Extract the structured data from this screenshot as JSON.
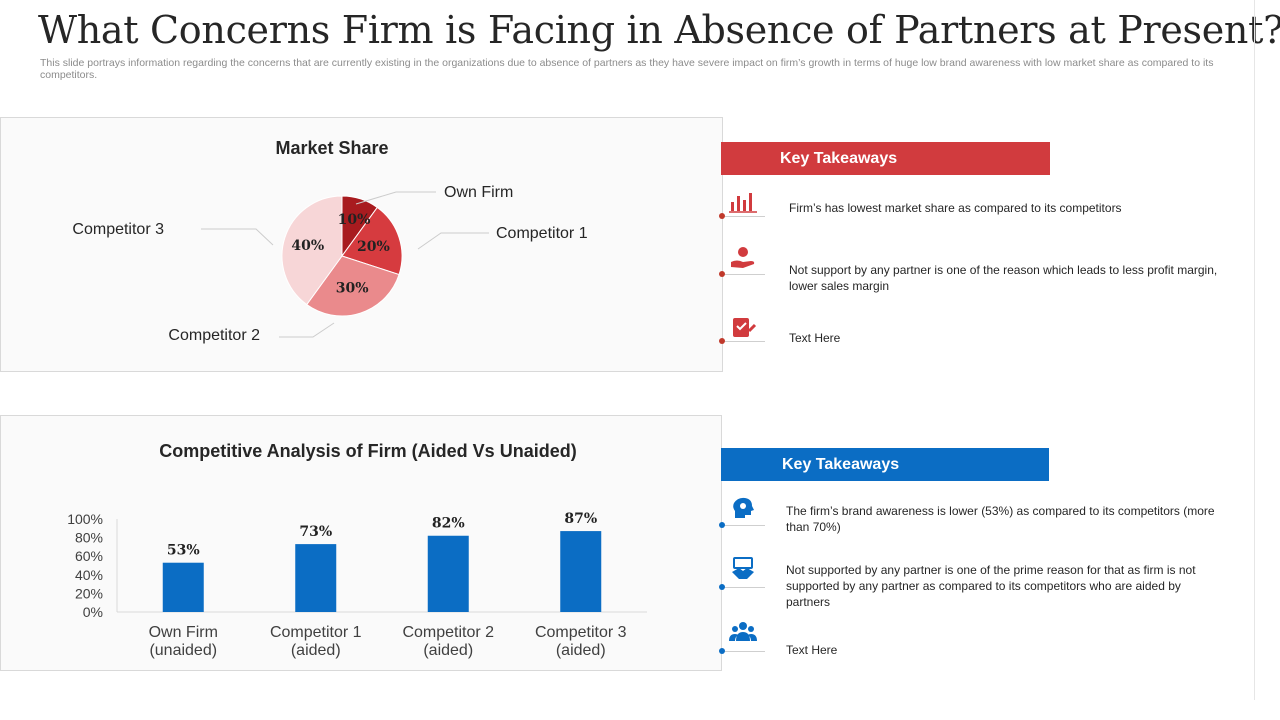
{
  "slide": {
    "title": "What Concerns Firm is Facing in Absence of Partners at Present?",
    "subtitle": "This slide portrays information regarding the concerns that are currently existing in the organizations due to absence of partners as they have severe impact on firm’s growth in terms of huge low brand awareness with low market share as compared to its competitors."
  },
  "colors": {
    "red_accent": "#d13b3e",
    "blue_accent": "#0b6dc4",
    "pie_own_firm": "#a81b1f",
    "pie_competitor1": "#d63b3f",
    "pie_competitor2": "#ea8a8c",
    "pie_competitor3": "#f7d6d7"
  },
  "chart_data": [
    {
      "type": "pie",
      "title": "Market Share",
      "categories": [
        "Own Firm",
        "Competitor 1",
        "Competitor 2",
        "Competitor 3"
      ],
      "values": [
        10,
        20,
        30,
        40
      ],
      "labels": [
        "10%",
        "20%",
        "30%",
        "40%"
      ]
    },
    {
      "type": "bar",
      "title": "Competitive Analysis of Firm (Aided Vs Unaided)",
      "categories": [
        [
          "Own Firm",
          "(unaided)"
        ],
        [
          "Competitor 1",
          "(aided)"
        ],
        [
          "Competitor 2",
          "(aided)"
        ],
        [
          "Competitor 3",
          "(aided)"
        ]
      ],
      "values": [
        53,
        73,
        82,
        87
      ],
      "labels": [
        "53%",
        "73%",
        "82%",
        "87%"
      ],
      "ylim": [
        0,
        100
      ],
      "yticks": [
        "0%",
        "20%",
        "40%",
        "60%",
        "80%",
        "100%"
      ],
      "color": "#0b6dc4"
    }
  ],
  "takeaways_market": {
    "header": "Key Takeaways",
    "items": [
      {
        "icon": "bar-chart-icon",
        "text": "Firm’s has lowest market share as compared to its competitors"
      },
      {
        "icon": "hand-coin-icon",
        "text": "Not support by any partner is one of the reason which leads to less profit margin, lower sales margin"
      },
      {
        "icon": "clipboard-check-icon",
        "text": "Text Here"
      }
    ]
  },
  "takeaways_brand": {
    "header": "Key Takeaways",
    "items": [
      {
        "icon": "head-gear-icon",
        "text": "The firm’s brand awareness is lower (53%) as compared to its competitors (more than 70%)"
      },
      {
        "icon": "handshake-icon",
        "text": "Not supported by any partner is one of the prime reason for that as firm is not supported by any partner as compared to its competitors who are aided by partners"
      },
      {
        "icon": "people-icon",
        "text": "Text Here"
      }
    ]
  }
}
